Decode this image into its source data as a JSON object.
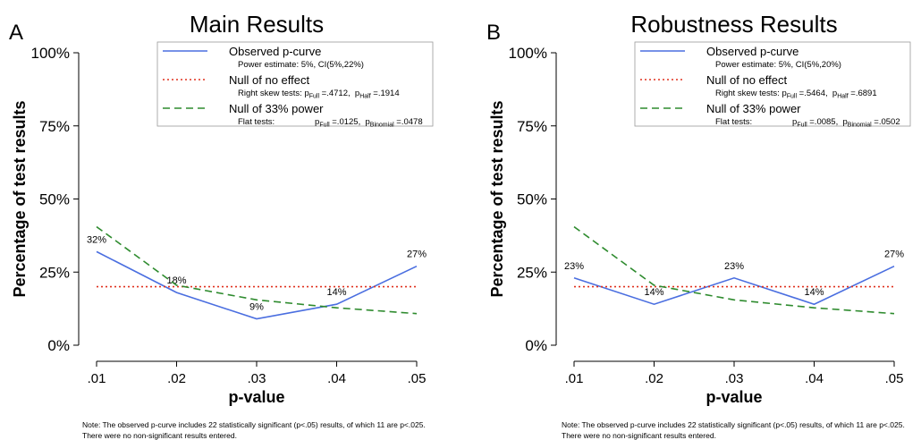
{
  "chart_data": [
    {
      "type": "line",
      "panel_label": "A",
      "title": "Main Results",
      "ylabel": "Percentage of test results",
      "xlabel": "p-value",
      "x": [
        0.01,
        0.02,
        0.03,
        0.04,
        0.05
      ],
      "xlim": [
        0.01,
        0.05
      ],
      "xticks": [
        {
          "value": 0.01,
          "label": ".01"
        },
        {
          "value": 0.02,
          "label": ".02"
        },
        {
          "value": 0.03,
          "label": ".03"
        },
        {
          "value": 0.04,
          "label": ".04"
        },
        {
          "value": 0.05,
          "label": ".05"
        }
      ],
      "ylim": [
        0,
        100
      ],
      "yticks": [
        {
          "value": 0,
          "label": "0%"
        },
        {
          "value": 25,
          "label": "25%"
        },
        {
          "value": 50,
          "label": "50%"
        },
        {
          "value": 75,
          "label": "75%"
        },
        {
          "value": 100,
          "label": "100%"
        }
      ],
      "series": [
        {
          "name": "Observed p-curve",
          "color": "#4a6ee0",
          "dash": "none",
          "values": [
            32,
            18,
            9,
            14,
            27
          ],
          "value_labels": [
            "32%",
            "18%",
            "9%",
            "14%",
            "27%"
          ],
          "legend_note": [
            "Power estimate: 5%, CI(5%,22%)"
          ]
        },
        {
          "name": "Null of no effect",
          "color": "#e0301e",
          "dash": "2,3",
          "values": [
            20,
            20,
            20,
            20,
            20
          ],
          "legend_note": [
            "Right skew tests: p",
            "Full",
            " =.4712,  p",
            "Half",
            " =.1914"
          ]
        },
        {
          "name": "Null of 33% power",
          "color": "#2e8b2e",
          "dash": "8,5",
          "values": [
            40.5,
            20.5,
            15.5,
            12.8,
            10.8
          ],
          "legend_note": [
            "Flat tests:                 p",
            "Full",
            " =.0125,  p",
            "Binomial",
            " =.0478"
          ]
        }
      ],
      "note": [
        "Note: The observed p-curve includes 22 statistically significant (p<.05) results, of which 11 are p<.025.",
        "There were no non-significant results entered."
      ]
    },
    {
      "type": "line",
      "panel_label": "B",
      "title": "Robustness Results",
      "ylabel": "Percentage of test results",
      "xlabel": "p-value",
      "x": [
        0.01,
        0.02,
        0.03,
        0.04,
        0.05
      ],
      "xlim": [
        0.01,
        0.05
      ],
      "xticks": [
        {
          "value": 0.01,
          "label": ".01"
        },
        {
          "value": 0.02,
          "label": ".02"
        },
        {
          "value": 0.03,
          "label": ".03"
        },
        {
          "value": 0.04,
          "label": ".04"
        },
        {
          "value": 0.05,
          "label": ".05"
        }
      ],
      "ylim": [
        0,
        100
      ],
      "yticks": [
        {
          "value": 0,
          "label": "0%"
        },
        {
          "value": 25,
          "label": "25%"
        },
        {
          "value": 50,
          "label": "50%"
        },
        {
          "value": 75,
          "label": "75%"
        },
        {
          "value": 100,
          "label": "100%"
        }
      ],
      "series": [
        {
          "name": "Observed p-curve",
          "color": "#4a6ee0",
          "dash": "none",
          "values": [
            23,
            14,
            23,
            14,
            27
          ],
          "value_labels": [
            "23%",
            "14%",
            "23%",
            "14%",
            "27%"
          ],
          "legend_note": [
            "Power estimate: 5%, CI(5%,20%)"
          ]
        },
        {
          "name": "Null of no effect",
          "color": "#e0301e",
          "dash": "2,3",
          "values": [
            20,
            20,
            20,
            20,
            20
          ],
          "legend_note": [
            "Right skew tests: p",
            "Full",
            " =.5464,  p",
            "Half",
            " =.6891"
          ]
        },
        {
          "name": "Null of 33% power",
          "color": "#2e8b2e",
          "dash": "8,5",
          "values": [
            40.5,
            20.5,
            15.5,
            12.8,
            10.8
          ],
          "legend_note": [
            "Flat tests:                 p",
            "Full",
            " =.0085,  p",
            "Binomial",
            " =.0502"
          ]
        }
      ],
      "note": [
        "Note: The observed p-curve includes 22 statistically significant (p<.05) results, of which 11 are p<.025.",
        "There were no non-significant results entered."
      ]
    }
  ]
}
